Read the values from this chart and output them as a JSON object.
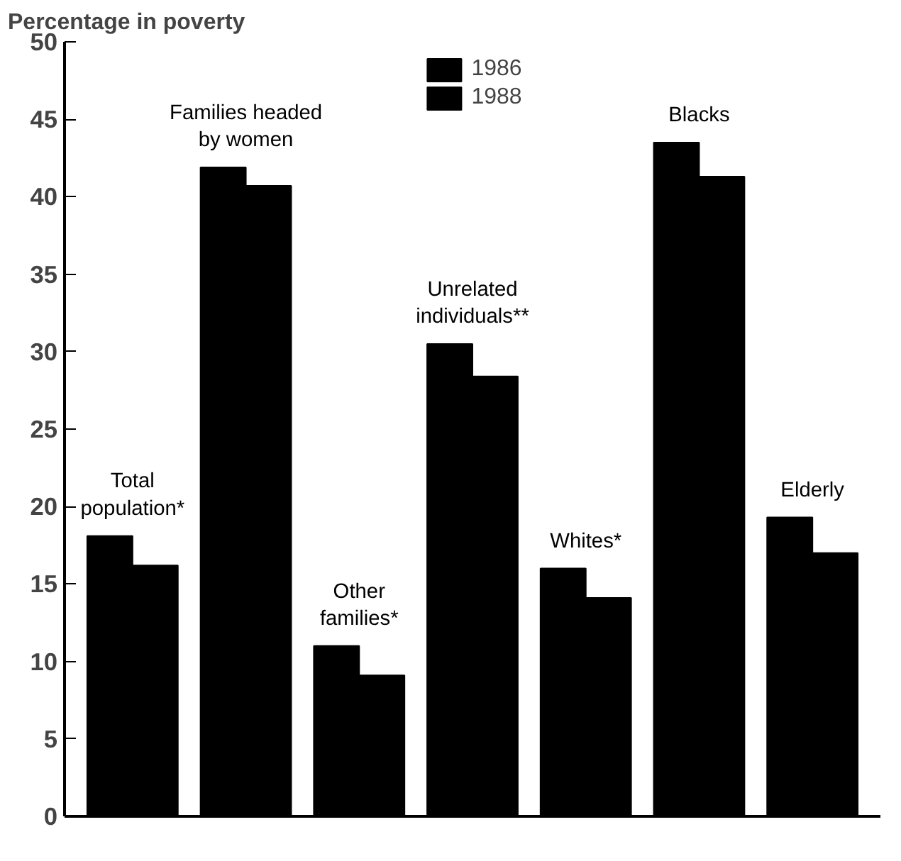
{
  "chart_data": {
    "type": "bar",
    "ylabel": "Percentage in poverty",
    "categories": [
      "Total\npopulation*",
      "Families headed\nby women",
      "Other\nfamilies*",
      "Unrelated\nindividuals**",
      "Whites*",
      "Blacks",
      "Elderly"
    ],
    "series": [
      {
        "name": "1986",
        "color": "#000000",
        "values": [
          18.1,
          41.9,
          11.0,
          30.5,
          16.0,
          43.5,
          19.3
        ]
      },
      {
        "name": "1988",
        "color": "#000000",
        "values": [
          16.2,
          40.7,
          9.1,
          28.4,
          14.1,
          41.3,
          17.0
        ]
      }
    ],
    "ylim": [
      0,
      50
    ],
    "yticks": [
      0,
      5,
      10,
      15,
      20,
      25,
      30,
      35,
      40,
      45,
      50
    ],
    "grid": false,
    "legend": "top",
    "tick_labels": "y"
  }
}
